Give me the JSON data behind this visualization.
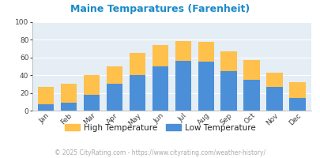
{
  "title": "Maine Temparatures (Farenheit)",
  "months": [
    "Jan",
    "Feb",
    "Mar",
    "Apr",
    "May",
    "Jun",
    "Jul",
    "Aug",
    "Sep",
    "Oct",
    "Nov",
    "Dec"
  ],
  "high_temps": [
    27,
    30,
    40,
    50,
    65,
    74,
    79,
    78,
    67,
    57,
    43,
    32
  ],
  "low_temps": [
    7,
    9,
    18,
    30,
    40,
    50,
    56,
    55,
    45,
    35,
    27,
    14
  ],
  "high_color": "#FFC04C",
  "low_color": "#4B8FD8",
  "bg_color": "#E4EEF4",
  "title_color": "#1A8AC8",
  "axis_color": "#444444",
  "legend_text_color": "#222222",
  "grid_color": "#FFFFFF",
  "ylim": [
    0,
    100
  ],
  "yticks": [
    0,
    20,
    40,
    60,
    80,
    100
  ],
  "legend_high": "High Temperature",
  "legend_low": "Low Temperature",
  "footer": "© 2025 CityRating.com - https://www.cityrating.com/weather-history/",
  "footer_color": "#AAAAAA",
  "figsize": [
    4.06,
    2.0
  ],
  "dpi": 100
}
